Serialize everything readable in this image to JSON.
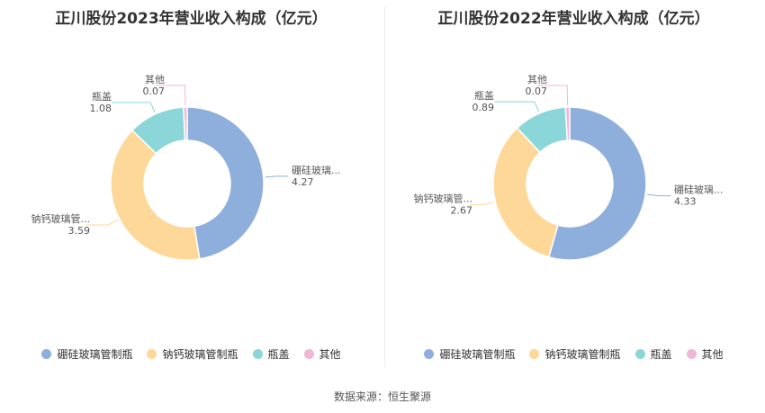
{
  "source_text": "数据来源：恒生聚源",
  "colors": [
    "#8eaedc",
    "#fed898",
    "#8ad6d8",
    "#efb6d8"
  ],
  "chart_data": [
    {
      "type": "pie",
      "title": "正川股份2023年营业收入构成（亿元）",
      "categories": [
        "硼硅玻璃管制瓶",
        "钠钙玻璃管制瓶",
        "瓶盖",
        "其他"
      ],
      "short_labels": [
        "硼硅玻璃...",
        "钠钙玻璃管...",
        "瓶盖",
        "其他"
      ],
      "values": [
        4.27,
        3.59,
        1.08,
        0.07
      ],
      "value_labels": [
        "4.27",
        "3.59",
        "1.08",
        "0.07"
      ],
      "legend": [
        "硼硅玻璃管制瓶",
        "钠钙玻璃管制瓶",
        "瓶盖",
        "其他"
      ],
      "legend_position": "bottom"
    },
    {
      "type": "pie",
      "title": "正川股份2022年营业收入构成（亿元）",
      "categories": [
        "硼硅玻璃管制瓶",
        "钠钙玻璃管制瓶",
        "瓶盖",
        "其他"
      ],
      "short_labels": [
        "硼硅玻璃...",
        "钠钙玻璃管...",
        "瓶盖",
        "其他"
      ],
      "values": [
        4.33,
        2.67,
        0.89,
        0.07
      ],
      "value_labels": [
        "4.33",
        "2.67",
        "0.89",
        "0.07"
      ],
      "legend": [
        "硼硅玻璃管制瓶",
        "钠钙玻璃管制瓶",
        "瓶盖",
        "其他"
      ],
      "legend_position": "bottom"
    }
  ]
}
